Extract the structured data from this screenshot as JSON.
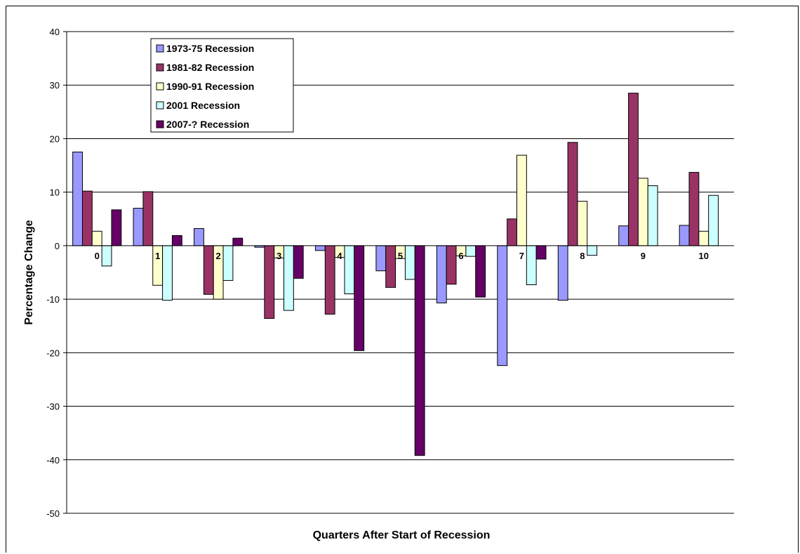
{
  "chart_data": {
    "type": "bar",
    "title": "",
    "xlabel": "Quarters After Start of Recession",
    "ylabel": "Percentage Change",
    "ylim": [
      -50,
      40
    ],
    "yticks": [
      40,
      30,
      20,
      10,
      0,
      -10,
      -20,
      -30,
      -40,
      -50
    ],
    "grid": true,
    "legend_position": "top-left",
    "categories": [
      "0",
      "1",
      "2",
      "3",
      "4",
      "5",
      "6",
      "7",
      "8",
      "9",
      "10"
    ],
    "series": [
      {
        "name": "1973-75 Recession",
        "color": "#9999ff",
        "values": [
          17.5,
          7.0,
          3.2,
          -0.3,
          -0.9,
          -4.7,
          -10.7,
          -22.4,
          -10.2,
          3.7,
          3.8
        ]
      },
      {
        "name": "1981-82 Recession",
        "color": "#993366",
        "values": [
          10.2,
          10.1,
          -9.1,
          -13.6,
          -12.8,
          -7.8,
          -7.2,
          5.0,
          19.3,
          28.5,
          13.7
        ]
      },
      {
        "name": "1990-91 Recession",
        "color": "#ffffcc",
        "values": [
          2.7,
          -7.4,
          -10.0,
          -2.3,
          -2.2,
          -2.4,
          -1.9,
          16.9,
          8.3,
          12.6,
          2.7
        ]
      },
      {
        "name": "2001 Recession",
        "color": "#ccffff",
        "values": [
          -3.8,
          -10.2,
          -6.5,
          -12.1,
          -9.0,
          -6.3,
          -2.0,
          -7.3,
          -1.8,
          11.2,
          9.4
        ]
      },
      {
        "name": "2007-? Recession",
        "color": "#660066",
        "values": [
          6.7,
          1.9,
          1.4,
          -6.1,
          -19.6,
          -39.2,
          -9.6,
          -2.5,
          null,
          null,
          null
        ]
      }
    ]
  }
}
